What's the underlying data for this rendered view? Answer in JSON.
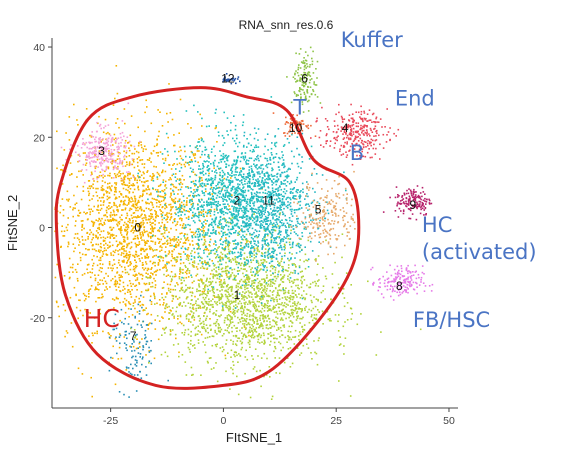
{
  "chart_data": {
    "type": "scatter",
    "title": "RNA_snn_res.0.6",
    "xlabel": "FItSNE_1",
    "ylabel": "FItSNE_2",
    "xlim": [
      -38,
      52
    ],
    "ylim": [
      -40,
      42
    ],
    "xticks": [
      -25,
      0,
      25,
      50
    ],
    "yticks": [
      -20,
      0,
      20,
      40
    ],
    "grid": false,
    "legend": "none",
    "clusters": [
      {
        "label": "0",
        "color": "#f5b400",
        "x": -20,
        "y": 0,
        "sx": 9,
        "sy": 11,
        "n": 2000
      },
      {
        "label": "1",
        "color": "#b2d33c",
        "x": 5,
        "y": -16,
        "sx": 9,
        "sy": 7,
        "n": 1700
      },
      {
        "label": "2",
        "color": "#22c0bd",
        "x": 2,
        "y": 6,
        "sx": 7,
        "sy": 7,
        "n": 1300
      },
      {
        "label": "11",
        "color": "#26b6c3",
        "x": 10,
        "y": 4,
        "sx": 5,
        "sy": 7,
        "n": 700
      },
      {
        "label": "3",
        "color": "#f4a2d8",
        "x": -27,
        "y": 17,
        "sx": 3,
        "sy": 2.5,
        "n": 260
      },
      {
        "label": "4",
        "color": "#e94a5a",
        "x": 29,
        "y": 21,
        "sx": 3.5,
        "sy": 2.5,
        "n": 280
      },
      {
        "label": "5",
        "color": "#e6a96a",
        "x": 23,
        "y": 3,
        "sx": 3,
        "sy": 4,
        "n": 200
      },
      {
        "label": "6",
        "color": "#8fc448",
        "x": 18,
        "y": 33,
        "sx": 1.4,
        "sy": 3,
        "n": 140
      },
      {
        "label": "7",
        "color": "#2a8fb5",
        "x": -20,
        "y": -27,
        "sx": 2.5,
        "sy": 5,
        "n": 110
      },
      {
        "label": "8",
        "color": "#e67ce8",
        "x": 39,
        "y": -12,
        "sx": 2.5,
        "sy": 1.8,
        "n": 170
      },
      {
        "label": "9",
        "color": "#b7226b",
        "x": 42,
        "y": 6,
        "sx": 2,
        "sy": 1.6,
        "n": 150
      },
      {
        "label": "10",
        "color": "#ee6b3a",
        "x": 16,
        "y": 23,
        "sx": 1.5,
        "sy": 1.2,
        "n": 70
      },
      {
        "label": "12",
        "color": "#2452a8",
        "x": 1,
        "y": 33,
        "sx": 0.9,
        "sy": 0.5,
        "n": 30
      }
    ],
    "cluster_label_positions": [
      {
        "label": "0",
        "x": -19,
        "y": 0
      },
      {
        "label": "1",
        "x": 3,
        "y": -15
      },
      {
        "label": "2",
        "x": 3,
        "y": 6
      },
      {
        "label": "11",
        "x": 10,
        "y": 6
      },
      {
        "label": "3",
        "x": -27,
        "y": 17
      },
      {
        "label": "4",
        "x": 27,
        "y": 22
      },
      {
        "label": "5",
        "x": 21,
        "y": 4
      },
      {
        "label": "6",
        "x": 18,
        "y": 33
      },
      {
        "label": "7",
        "x": -20,
        "y": -24
      },
      {
        "label": "8",
        "x": 39,
        "y": -13
      },
      {
        "label": "9",
        "x": 42,
        "y": 5
      },
      {
        "label": "10",
        "x": 16,
        "y": 22
      },
      {
        "label": "12",
        "x": 1,
        "y": 33
      }
    ],
    "annotations": [
      {
        "text": "Kuffer",
        "color": "#4a74c4",
        "x": 26,
        "y": 40
      },
      {
        "text": "End",
        "color": "#4a74c4",
        "x": 38,
        "y": 27
      },
      {
        "text": "T",
        "color": "#4a74c4",
        "x": 15.5,
        "y": 25
      },
      {
        "text": "B",
        "color": "#4a74c4",
        "x": 28,
        "y": 15
      },
      {
        "text": "HC",
        "color": "#4a74c4",
        "x": 44,
        "y": -1
      },
      {
        "text": "(activated)",
        "color": "#4a74c4",
        "x": 44,
        "y": -7
      },
      {
        "text": "FB/HSC",
        "color": "#4a74c4",
        "x": 42,
        "y": -22
      },
      {
        "text": "HC",
        "color": "#d42222",
        "x": -31,
        "y": -22
      }
    ],
    "hc_outline": [
      [
        -36,
        10
      ],
      [
        -30,
        24
      ],
      [
        -20,
        29
      ],
      [
        -5,
        31
      ],
      [
        5,
        29
      ],
      [
        14,
        26
      ],
      [
        20,
        15
      ],
      [
        28,
        10
      ],
      [
        30,
        0
      ],
      [
        28,
        -10
      ],
      [
        20,
        -22
      ],
      [
        10,
        -32
      ],
      [
        0,
        -35
      ],
      [
        -15,
        -35
      ],
      [
        -28,
        -28
      ],
      [
        -35,
        -15
      ],
      [
        -37,
        0
      ]
    ]
  }
}
